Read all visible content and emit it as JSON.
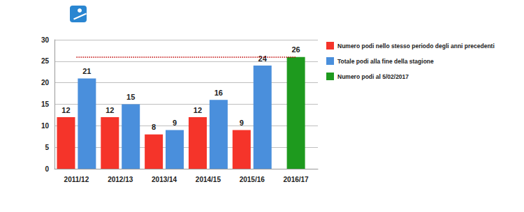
{
  "chart_data": {
    "type": "bar",
    "categories": [
      "2011/12",
      "2012/13",
      "2013/14",
      "2014/15",
      "2015/16",
      "2016/17"
    ],
    "series": [
      {
        "name": "Numero podi nello stesso periodo degli anni precedenti",
        "color": "#f5342a",
        "values": [
          12,
          12,
          8,
          12,
          9,
          null
        ]
      },
      {
        "name": "Totale podi alla fine della stagione",
        "color": "#4a8fdc",
        "values": [
          21,
          15,
          9,
          16,
          24,
          null
        ]
      },
      {
        "name": "Numero podi al 5/02/2017",
        "color": "#1e9a1e",
        "values": [
          null,
          null,
          null,
          null,
          null,
          26
        ]
      }
    ],
    "ylim": [
      0,
      30
    ],
    "yticks": [
      0,
      5,
      10,
      15,
      20,
      25,
      30
    ],
    "grid": true,
    "data_labels": true,
    "legend": "right",
    "reference_line": {
      "value": 26,
      "color": "#c00000",
      "line_style": "dotted"
    }
  }
}
